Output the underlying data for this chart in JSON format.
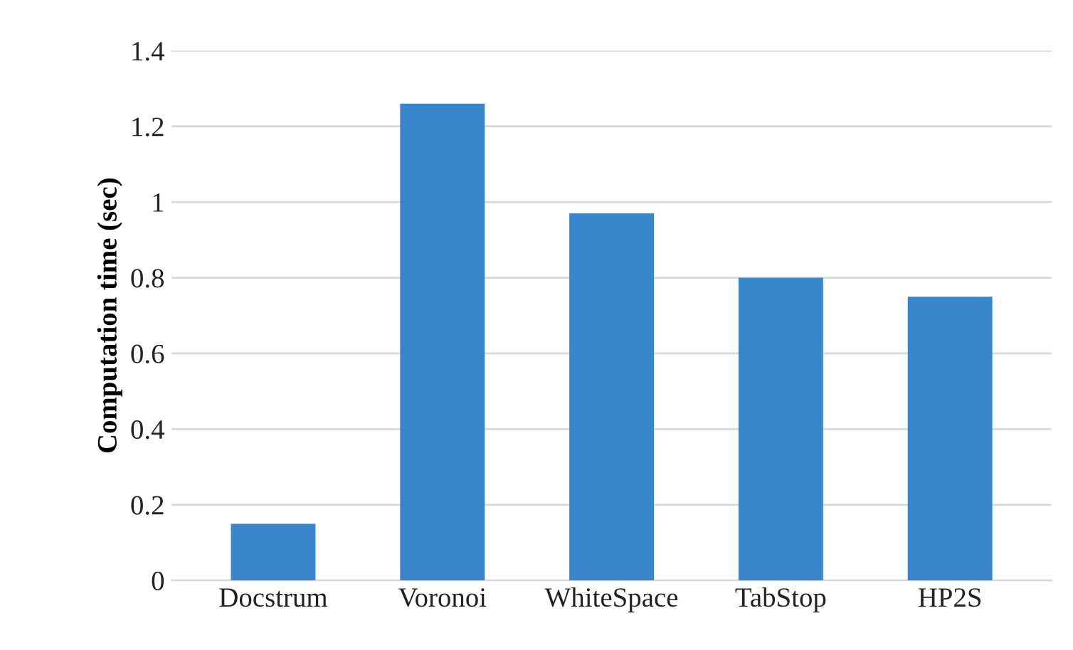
{
  "chart_data": {
    "type": "bar",
    "ylabel": "Computation time (sec)",
    "categories": [
      "Docstrum",
      "Voronoi",
      "WhiteSpace",
      "TabStop",
      "HP2S"
    ],
    "values": [
      0.15,
      1.26,
      0.97,
      0.8,
      0.75
    ],
    "color": "#3a86cc",
    "ylim": [
      0,
      1.4
    ],
    "yticks": [
      0,
      0.2,
      0.4,
      0.6,
      0.8,
      1,
      1.2,
      1.4
    ],
    "grid": "y"
  }
}
